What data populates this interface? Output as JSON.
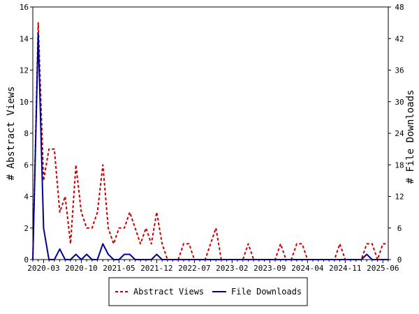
{
  "chart_data": {
    "type": "line",
    "x": [
      "2020-01",
      "2020-02",
      "2020-03",
      "2020-04",
      "2020-05",
      "2020-06",
      "2020-07",
      "2020-08",
      "2020-09",
      "2020-10",
      "2020-11",
      "2020-12",
      "2021-01",
      "2021-02",
      "2021-03",
      "2021-04",
      "2021-05",
      "2021-06",
      "2021-07",
      "2021-08",
      "2021-09",
      "2021-10",
      "2021-11",
      "2021-12",
      "2022-01",
      "2022-02",
      "2022-03",
      "2022-04",
      "2022-05",
      "2022-06",
      "2022-07",
      "2022-08",
      "2022-09",
      "2022-10",
      "2022-11",
      "2022-12",
      "2023-01",
      "2023-02",
      "2023-03",
      "2023-04",
      "2023-05",
      "2023-06",
      "2023-07",
      "2023-08",
      "2023-09",
      "2023-10",
      "2023-11",
      "2023-12",
      "2024-01",
      "2024-02",
      "2024-03",
      "2024-04",
      "2024-05",
      "2024-06",
      "2024-07",
      "2024-08",
      "2024-09",
      "2024-10",
      "2024-11",
      "2024-12",
      "2025-01",
      "2025-02",
      "2025-03",
      "2025-04",
      "2025-05",
      "2025-06",
      "2025-07"
    ],
    "xticks": [
      "2020-03",
      "2020-10",
      "2021-05",
      "2021-12",
      "2022-07",
      "2023-02",
      "2023-09",
      "2024-04",
      "2024-11",
      "2025-06"
    ],
    "series": [
      {
        "name": "Abstract Views",
        "axis": "left",
        "color": "#cc0000",
        "dash": "dashed",
        "values": [
          0,
          15,
          5,
          7,
          7,
          3,
          4,
          1,
          6,
          3,
          2,
          2,
          3,
          6,
          2,
          1,
          2,
          2,
          3,
          2,
          1,
          2,
          1,
          3,
          1,
          0,
          0,
          0,
          1,
          1,
          0,
          0,
          0,
          1,
          2,
          0,
          0,
          0,
          0,
          0,
          1,
          0,
          0,
          0,
          0,
          0,
          1,
          0,
          0,
          1,
          1,
          0,
          0,
          0,
          0,
          0,
          0,
          1,
          0,
          0,
          0,
          0,
          1,
          1,
          0,
          1,
          1
        ]
      },
      {
        "name": "File Downloads",
        "axis": "right",
        "color": "#000099",
        "dash": "solid",
        "values": [
          0,
          43,
          6,
          0,
          0,
          2,
          0,
          0,
          1,
          0,
          1,
          0,
          0,
          3,
          1,
          0,
          0,
          1,
          1,
          0,
          0,
          0,
          0,
          1,
          0,
          0,
          0,
          0,
          0,
          0,
          0,
          0,
          0,
          0,
          0,
          0,
          0,
          0,
          0,
          0,
          0,
          0,
          0,
          0,
          0,
          0,
          0,
          0,
          0,
          0,
          0,
          0,
          0,
          0,
          0,
          0,
          0,
          0,
          0,
          0,
          0,
          0,
          1,
          0,
          0,
          0,
          0
        ]
      }
    ],
    "ylabel": "# Abstract Views",
    "y2label": "# File Downloads",
    "ylim": [
      0,
      16
    ],
    "y2lim": [
      0,
      48
    ],
    "yticks": [
      0,
      2,
      4,
      6,
      8,
      10,
      12,
      14,
      16
    ],
    "y2ticks": [
      0,
      6,
      12,
      18,
      24,
      30,
      36,
      42,
      48
    ],
    "grid": false,
    "legend": "bottom"
  }
}
